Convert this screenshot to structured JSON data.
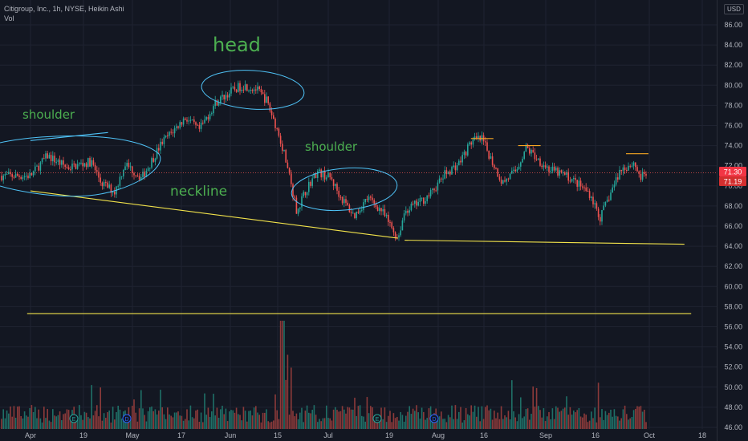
{
  "header": {
    "legend_title": "Citigroup, Inc., 1h, NYSE, Heikin Ashi",
    "volume_label": "Vol",
    "currency": "USD"
  },
  "annotations": {
    "head": "head",
    "shoulder_left": "shoulder",
    "shoulder_right": "shoulder",
    "neckline": "neckline"
  },
  "price_badges": {
    "last": "71.30",
    "prev": "71.19"
  },
  "colors": {
    "background": "#131722",
    "grid": "#1f2331",
    "up": "#26a69a",
    "down": "#ef5350",
    "vol_up": "#1f6f67",
    "vol_down": "#8c3a3a",
    "drawing": "#f2e34b",
    "ellipse": "#4fc3f7",
    "annotation": "#4caf50",
    "badge": "#f23645"
  },
  "chart_data": {
    "type": "candlestick",
    "y_ticks": [
      "86.00",
      "84.00",
      "82.00",
      "80.00",
      "78.00",
      "76.00",
      "74.00",
      "72.00",
      "70.00",
      "68.00",
      "66.00",
      "64.00",
      "62.00",
      "60.00",
      "58.00",
      "56.00",
      "54.00",
      "52.00",
      "50.00",
      "48.00",
      "46.00"
    ],
    "x_ticks": [
      "Apr",
      "19",
      "May",
      "17",
      "Jun",
      "15",
      "Jul",
      "19",
      "Aug",
      "16",
      "Sep",
      "16",
      "Oct",
      "18"
    ],
    "ylim": [
      44.5,
      87.5
    ],
    "grid": true,
    "price_path": [
      [
        "Apr 1",
        71.0
      ],
      [
        "Apr 6",
        73.0
      ],
      [
        "Apr 12",
        71.8
      ],
      [
        "Apr 19",
        72.4
      ],
      [
        "Apr 22",
        70.3
      ],
      [
        "Apr 26",
        69.4
      ],
      [
        "Apr 29",
        72.2
      ],
      [
        "May 4",
        70.8
      ],
      [
        "May 10",
        74.3
      ],
      [
        "May 17",
        76.8
      ],
      [
        "May 21",
        75.5
      ],
      [
        "May 26",
        78.3
      ],
      [
        "May 31",
        79.5
      ],
      [
        "Jun 3",
        80.0
      ],
      [
        "Jun 7",
        79.6
      ],
      [
        "Jun 10",
        78.5
      ],
      [
        "Jun 13",
        75.8
      ],
      [
        "Jun 15",
        73.5
      ],
      [
        "Jun 17",
        70.8
      ],
      [
        "Jun 19",
        67.5
      ],
      [
        "Jun 22",
        69.8
      ],
      [
        "Jun 25",
        71.4
      ],
      [
        "Jun 29",
        70.8
      ],
      [
        "Jul 2",
        68.9
      ],
      [
        "Jul 6",
        67.0
      ],
      [
        "Jul 10",
        68.8
      ],
      [
        "Jul 14",
        67.6
      ],
      [
        "Jul 19",
        64.8
      ],
      [
        "Jul 21",
        67.5
      ],
      [
        "Jul 26",
        68.5
      ],
      [
        "Jul 29",
        69.3
      ],
      [
        "Aug 2",
        71.2
      ],
      [
        "Aug 6",
        72.2
      ],
      [
        "Aug 10",
        74.5
      ],
      [
        "Aug 13",
        74.6
      ],
      [
        "Aug 16",
        72.4
      ],
      [
        "Aug 19",
        70.3
      ],
      [
        "Aug 23",
        71.5
      ],
      [
        "Aug 26",
        73.8
      ],
      [
        "Aug 30",
        72.5
      ],
      [
        "Sep 2",
        71.6
      ],
      [
        "Sep 7",
        71.0
      ],
      [
        "Sep 10",
        70.3
      ],
      [
        "Sep 14",
        69.2
      ],
      [
        "Sep 17",
        66.8
      ],
      [
        "Sep 20",
        69.2
      ],
      [
        "Sep 23",
        71.6
      ],
      [
        "Sep 27",
        72.3
      ],
      [
        "Sep 29",
        70.8
      ],
      [
        "Oct 1",
        71.3
      ]
    ],
    "drawings": {
      "neckline_left": [
        [
          "Apr 1",
          69.5
        ],
        [
          "Jul 19",
          64.8
        ]
      ],
      "neckline_right": [
        [
          "Jul 21",
          64.6
        ],
        [
          "Oct 12",
          64.2
        ]
      ],
      "support_line": [
        [
          "Mar 31",
          57.3
        ],
        [
          "Oct 14",
          57.3
        ]
      ],
      "swing_highs": [
        [
          "Aug 13",
          74.7
        ],
        [
          "Aug 27",
          74.0
        ],
        [
          "Sep 28",
          73.2
        ]
      ],
      "shoulder_top": [
        [
          "Apr 1",
          74.5
        ],
        [
          "Apr 24",
          75.3
        ]
      ],
      "last_price_line": 71.3
    }
  }
}
